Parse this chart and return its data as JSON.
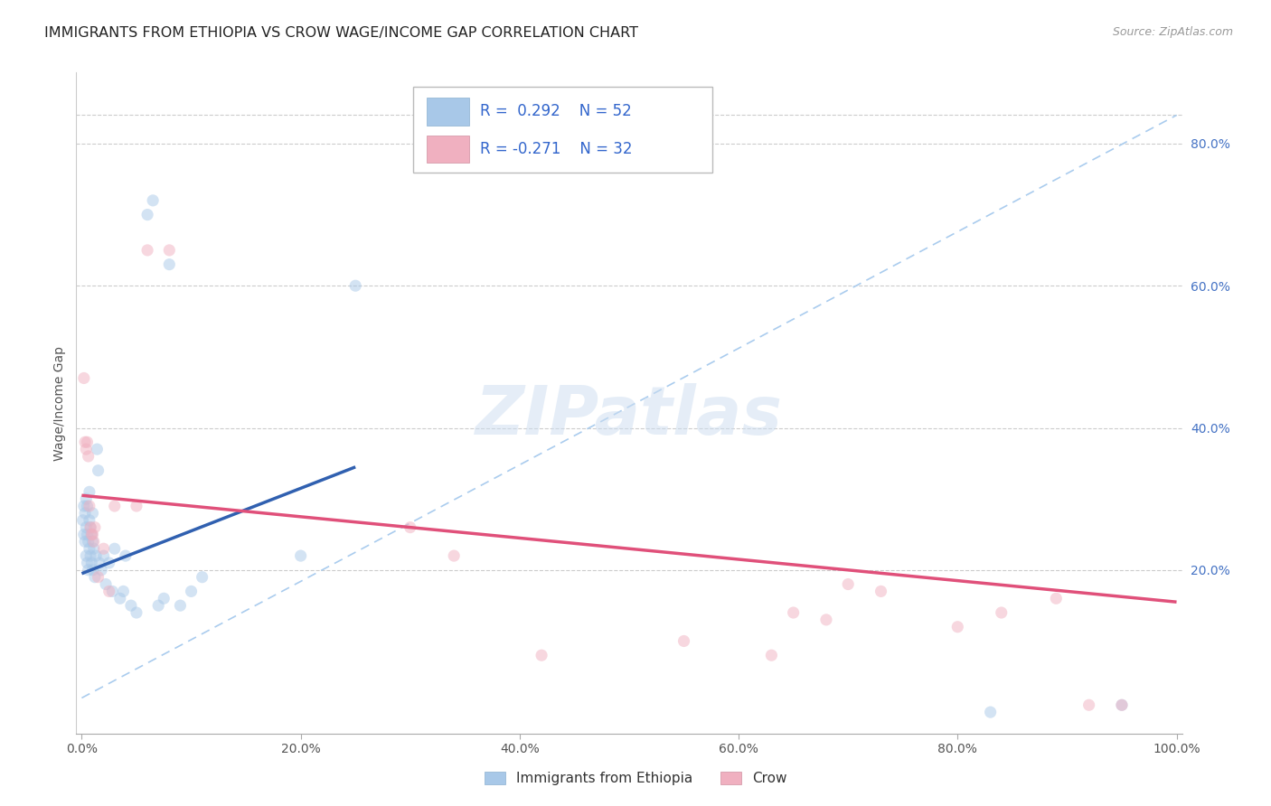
{
  "title": "IMMIGRANTS FROM ETHIOPIA VS CROW WAGE/INCOME GAP CORRELATION CHART",
  "source": "Source: ZipAtlas.com",
  "ylabel": "Wage/Income Gap",
  "xlim": [
    -0.005,
    1.005
  ],
  "ylim": [
    -0.03,
    0.9
  ],
  "xticks": [
    0.0,
    0.2,
    0.4,
    0.6,
    0.8,
    1.0
  ],
  "xticklabels": [
    "0.0%",
    "20.0%",
    "40.0%",
    "60.0%",
    "80.0%",
    "100.0%"
  ],
  "yticks": [
    0.2,
    0.4,
    0.6,
    0.8
  ],
  "yticklabels": [
    "20.0%",
    "40.0%",
    "60.0%",
    "80.0%"
  ],
  "legend_labels": [
    "Immigrants from Ethiopia",
    "Crow"
  ],
  "blue_R": "0.292",
  "blue_N": "52",
  "pink_R": "-0.271",
  "pink_N": "32",
  "blue_color": "#a8c8e8",
  "pink_color": "#f0b0c0",
  "blue_line_color": "#3060b0",
  "pink_line_color": "#e0507a",
  "blue_scatter_x": [
    0.001,
    0.002,
    0.002,
    0.003,
    0.003,
    0.004,
    0.004,
    0.004,
    0.005,
    0.005,
    0.005,
    0.006,
    0.006,
    0.007,
    0.007,
    0.007,
    0.008,
    0.008,
    0.009,
    0.009,
    0.01,
    0.01,
    0.01,
    0.011,
    0.012,
    0.013,
    0.014,
    0.015,
    0.016,
    0.018,
    0.02,
    0.022,
    0.025,
    0.028,
    0.03,
    0.035,
    0.038,
    0.04,
    0.045,
    0.05,
    0.06,
    0.065,
    0.07,
    0.075,
    0.08,
    0.09,
    0.1,
    0.11,
    0.2,
    0.25,
    0.83,
    0.95
  ],
  "blue_scatter_y": [
    0.27,
    0.25,
    0.29,
    0.24,
    0.28,
    0.22,
    0.26,
    0.3,
    0.21,
    0.25,
    0.29,
    0.2,
    0.24,
    0.23,
    0.27,
    0.31,
    0.22,
    0.26,
    0.21,
    0.25,
    0.2,
    0.24,
    0.28,
    0.23,
    0.19,
    0.22,
    0.37,
    0.34,
    0.21,
    0.2,
    0.22,
    0.18,
    0.21,
    0.17,
    0.23,
    0.16,
    0.17,
    0.22,
    0.15,
    0.14,
    0.7,
    0.72,
    0.15,
    0.16,
    0.63,
    0.15,
    0.17,
    0.19,
    0.22,
    0.6,
    0.0,
    0.01
  ],
  "pink_scatter_x": [
    0.002,
    0.003,
    0.004,
    0.005,
    0.006,
    0.007,
    0.008,
    0.009,
    0.01,
    0.011,
    0.012,
    0.015,
    0.02,
    0.025,
    0.03,
    0.05,
    0.06,
    0.08,
    0.3,
    0.34,
    0.42,
    0.55,
    0.63,
    0.65,
    0.68,
    0.7,
    0.73,
    0.8,
    0.84,
    0.89,
    0.92,
    0.95
  ],
  "pink_scatter_y": [
    0.47,
    0.38,
    0.37,
    0.38,
    0.36,
    0.29,
    0.26,
    0.25,
    0.25,
    0.24,
    0.26,
    0.19,
    0.23,
    0.17,
    0.29,
    0.29,
    0.65,
    0.65,
    0.26,
    0.22,
    0.08,
    0.1,
    0.08,
    0.14,
    0.13,
    0.18,
    0.17,
    0.12,
    0.14,
    0.16,
    0.01,
    0.01
  ],
  "blue_trend_x": [
    0.0,
    0.25
  ],
  "blue_trend_y": [
    0.195,
    0.345
  ],
  "pink_trend_x": [
    0.0,
    1.0
  ],
  "pink_trend_y": [
    0.305,
    0.155
  ],
  "ref_line_x": [
    0.0,
    1.0
  ],
  "ref_line_y": [
    0.02,
    0.84
  ],
  "watermark_text": "ZIPatlas",
  "title_fontsize": 11.5,
  "tick_fontsize": 10,
  "legend_fontsize": 11,
  "source_fontsize": 9,
  "marker_size": 90,
  "marker_alpha": 0.5,
  "grid_color": "#cccccc",
  "background_color": "#ffffff"
}
